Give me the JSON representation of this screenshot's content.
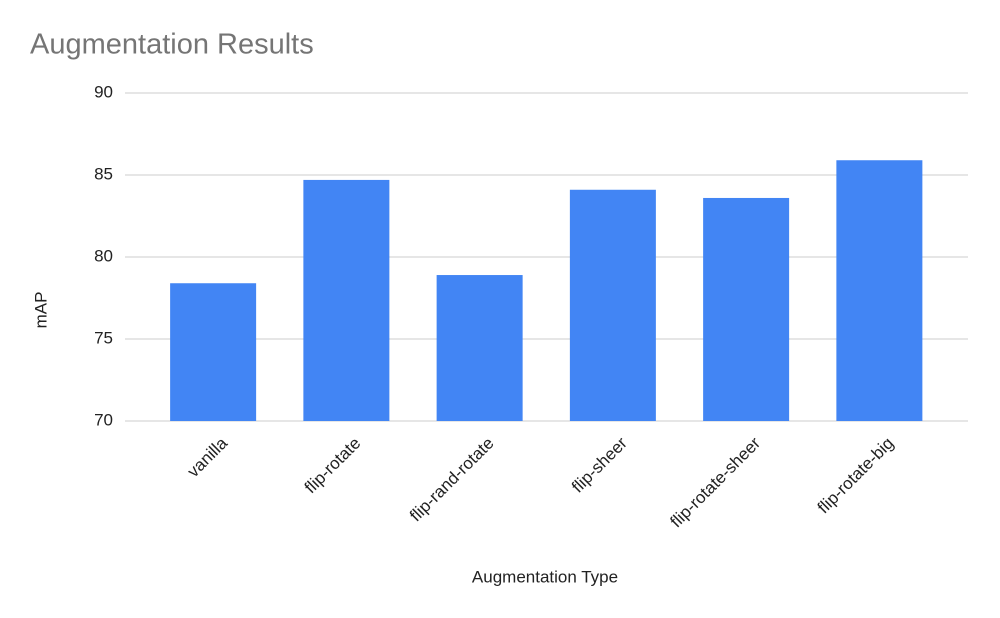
{
  "chart_data": {
    "type": "bar",
    "title": "Augmentation Results",
    "x_label": "Augmentation Type",
    "y_label": "mAP",
    "categories": [
      "vanilla",
      "flip-rotate",
      "flip-rand-rotate",
      "flip-sheer",
      "flip-rotate-sheer",
      "flip-rotate-big"
    ],
    "values": [
      78.4,
      84.7,
      78.9,
      84.1,
      83.6,
      85.9
    ],
    "color": "#4285f4",
    "ylim": [
      70,
      90
    ],
    "yticks": [
      70,
      75,
      80,
      85,
      90
    ],
    "grid": true
  }
}
